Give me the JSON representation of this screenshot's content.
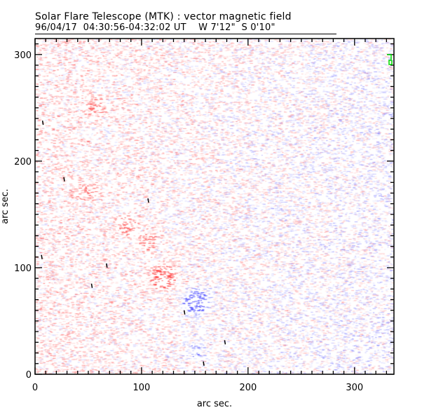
{
  "chart_data": {
    "type": "heatmap",
    "title": "Solar Flare Telescope (MTK) : vector magnetic field",
    "subtitle": {
      "date": "96/04/17",
      "time_range": "04:30:56-04:32:02 UT",
      "position_ew": "W 7'12\"",
      "position_ns": "S 0'10\""
    },
    "xlabel": "arc sec.",
    "ylabel": "arc sec.",
    "xlim": [
      0,
      337
    ],
    "ylim": [
      0,
      315
    ],
    "xticks": [
      "0",
      "100",
      "200",
      "300"
    ],
    "yticks": [
      "0",
      "100",
      "200",
      "300"
    ],
    "minor_tick_step": 10,
    "colors": {
      "positive": "#ff6060",
      "negative": "#6060ff",
      "vectors": "#000000",
      "marker": "#00dd00"
    },
    "features": [
      {
        "polarity": "positive",
        "x": 120,
        "y": 92,
        "strength": 1.0
      },
      {
        "polarity": "negative",
        "x": 150,
        "y": 68,
        "strength": 1.0
      },
      {
        "polarity": "positive",
        "x": 85,
        "y": 140,
        "strength": 0.4
      },
      {
        "polarity": "positive",
        "x": 105,
        "y": 125,
        "strength": 0.35
      },
      {
        "polarity": "positive",
        "x": 55,
        "y": 250,
        "strength": 0.3
      },
      {
        "polarity": "positive",
        "x": 47,
        "y": 172,
        "strength": 0.25
      },
      {
        "polarity": "negative",
        "x": 150,
        "y": 22,
        "strength": 0.25
      }
    ],
    "vectors": [
      [
        7,
        236
      ],
      [
        27,
        183
      ],
      [
        106,
        163
      ],
      [
        67,
        102
      ],
      [
        53,
        83
      ],
      [
        140,
        58
      ],
      [
        178,
        30
      ],
      [
        158,
        10
      ],
      [
        6,
        110
      ]
    ]
  }
}
